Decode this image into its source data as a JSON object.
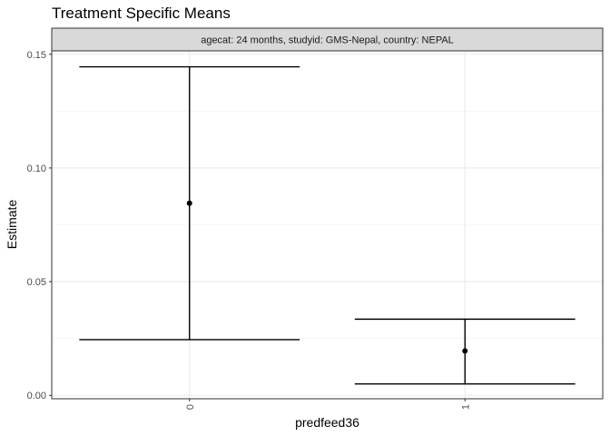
{
  "chart_data": {
    "type": "errorbar",
    "title": "Treatment Specific Means",
    "facet_label": "agecat: 24 months, studyid: GMS-Nepal, country: NEPAL",
    "xlabel": "predfeed36",
    "ylabel": "Estimate",
    "categories": [
      "0",
      "1"
    ],
    "points": [
      {
        "x": "0",
        "estimate": 0.0845,
        "lower": 0.0245,
        "upper": 0.1445
      },
      {
        "x": "1",
        "estimate": 0.0195,
        "lower": 0.005,
        "upper": 0.0335
      }
    ],
    "ylim": [
      -0.0015,
      0.1515
    ],
    "yticks": [
      0.0,
      0.05,
      0.1,
      0.15
    ],
    "ytick_labels": [
      "0.00",
      "0.05",
      "0.10",
      "0.15"
    ],
    "yminor": [
      0.025,
      0.075,
      0.125
    ],
    "grid": true,
    "legend": "none"
  }
}
